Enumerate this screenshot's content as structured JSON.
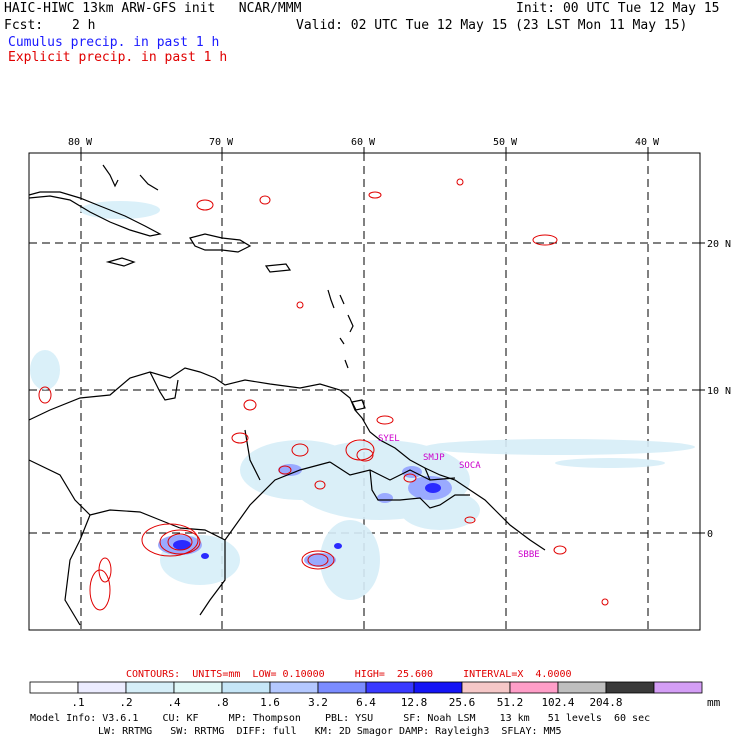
{
  "header": {
    "title": "HAIC-HIWC 13km ARW-GFS init   NCAR/MMM",
    "init": "Init: 00 UTC Tue 12 May 15",
    "fcst_label": "Fcst:",
    "fcst_value": "2 h",
    "valid": "Valid: 02 UTC Tue 12 May 15 (23 LST Mon 11 May 15)",
    "cumulus": "Cumulus precip. in past 1 h",
    "explicit": "Explicit precip. in past 1 h"
  },
  "map": {
    "lon_labels": [
      "80 W",
      "70 W",
      "60 W",
      "50 W",
      "40 W"
    ],
    "lat_labels": [
      "20 N",
      "10 N",
      "0"
    ],
    "stations": [
      "SYEL",
      "SMJP",
      "SOCA",
      "SBBE"
    ]
  },
  "contours": {
    "label": "CONTOURS:  UNITS=mm  LOW= 0.10000     HIGH=  25.600     INTERVAL=X  4.0000"
  },
  "colorbar": {
    "levels": [
      ".1",
      ".2",
      ".4",
      ".8",
      "1.6",
      "3.2",
      "6.4",
      "12.8",
      "25.6",
      "51.2",
      "102.4",
      "204.8"
    ],
    "unit": "mm",
    "colors": [
      "#ffffff",
      "#ececff",
      "#d6eef8",
      "#dff7f7",
      "#c6e6f7",
      "#b4c8ff",
      "#7b8cff",
      "#3939ff",
      "#1414f5",
      "#f6c8c8",
      "#ff9ec8",
      "#bfbfbf",
      "#3a3a3a",
      "#d49ef6"
    ]
  },
  "model_info": {
    "line1": "Model Info: V3.6.1    CU: KF     MP: Thompson    PBL: YSU     SF: Noah LSM    13 km   51 levels  60 sec",
    "line2": "LW: RRTMG   SW: RRTMG  DIFF: full   KM: 2D Smagor DAMP: Rayleigh3  SFLAY: MM5"
  }
}
